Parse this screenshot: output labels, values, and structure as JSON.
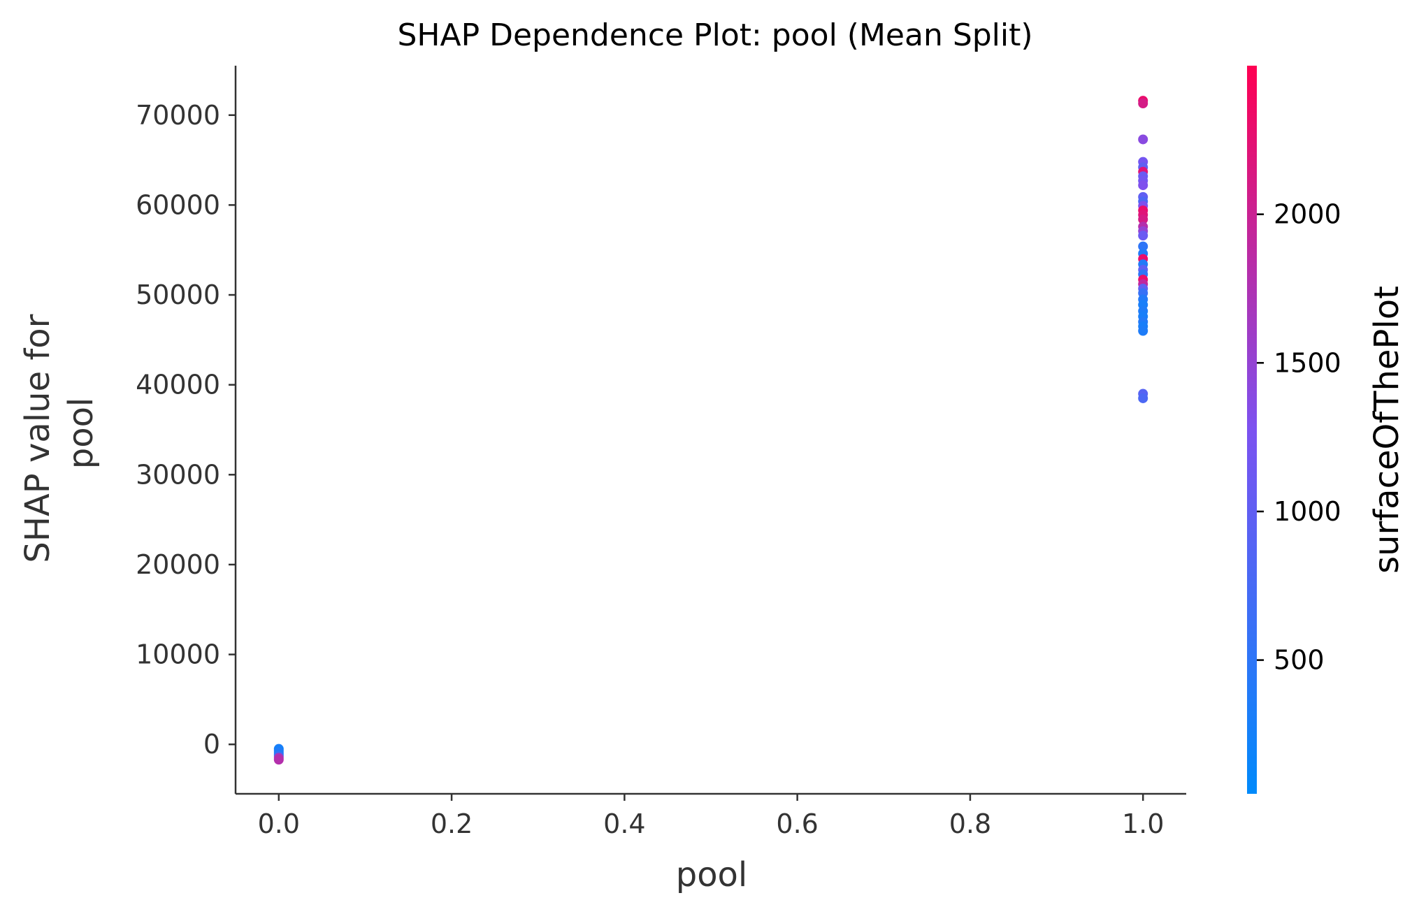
{
  "chart_data": {
    "type": "scatter",
    "title": "SHAP Dependence Plot: pool (Mean Split)",
    "xlabel": "pool",
    "ylabel_lines": [
      "SHAP value for",
      "pool"
    ],
    "xlim": [
      -0.05,
      1.05
    ],
    "ylim": [
      -5500,
      75500
    ],
    "x_ticks": [
      0.0,
      0.2,
      0.4,
      0.6,
      0.8,
      1.0
    ],
    "x_tick_labels": [
      "0.0",
      "0.2",
      "0.4",
      "0.6",
      "0.8",
      "1.0"
    ],
    "y_ticks": [
      0,
      10000,
      20000,
      30000,
      40000,
      50000,
      60000,
      70000
    ],
    "y_tick_labels": [
      "0",
      "10000",
      "20000",
      "30000",
      "40000",
      "50000",
      "60000",
      "70000"
    ],
    "grid": false,
    "colorbar": {
      "label": "surfaceOfThePlot",
      "range": [
        50,
        2500
      ],
      "ticks": [
        500,
        1000,
        1500,
        2000
      ],
      "tick_labels": [
        "500",
        "1000",
        "1500",
        "2000"
      ],
      "color_low": "#008afb",
      "color_mid": "#7c52f0",
      "color_high": "#ff0052"
    },
    "points": [
      {
        "x": 0,
        "y": -500,
        "c": 300
      },
      {
        "x": 0,
        "y": -700,
        "c": 250
      },
      {
        "x": 0,
        "y": -900,
        "c": 400
      },
      {
        "x": 0,
        "y": -1100,
        "c": 350
      },
      {
        "x": 0,
        "y": -1300,
        "c": 600
      },
      {
        "x": 0,
        "y": -1500,
        "c": 1700
      },
      {
        "x": 0,
        "y": -1700,
        "c": 1800
      },
      {
        "x": 1,
        "y": 71600,
        "c": 2300
      },
      {
        "x": 1,
        "y": 71300,
        "c": 2100
      },
      {
        "x": 1,
        "y": 67300,
        "c": 1400
      },
      {
        "x": 1,
        "y": 64800,
        "c": 1200
      },
      {
        "x": 1,
        "y": 64200,
        "c": 1000
      },
      {
        "x": 1,
        "y": 63700,
        "c": 2200
      },
      {
        "x": 1,
        "y": 63200,
        "c": 1100
      },
      {
        "x": 1,
        "y": 62700,
        "c": 1200
      },
      {
        "x": 1,
        "y": 62200,
        "c": 1300
      },
      {
        "x": 1,
        "y": 60900,
        "c": 1000
      },
      {
        "x": 1,
        "y": 60400,
        "c": 800
      },
      {
        "x": 1,
        "y": 59900,
        "c": 1300
      },
      {
        "x": 1,
        "y": 59400,
        "c": 2300
      },
      {
        "x": 1,
        "y": 58900,
        "c": 2200
      },
      {
        "x": 1,
        "y": 58400,
        "c": 2100
      },
      {
        "x": 1,
        "y": 57600,
        "c": 1800
      },
      {
        "x": 1,
        "y": 57100,
        "c": 1500
      },
      {
        "x": 1,
        "y": 56600,
        "c": 1100
      },
      {
        "x": 1,
        "y": 55400,
        "c": 500
      },
      {
        "x": 1,
        "y": 54600,
        "c": 400
      },
      {
        "x": 1,
        "y": 54000,
        "c": 2300
      },
      {
        "x": 1,
        "y": 53400,
        "c": 400
      },
      {
        "x": 1,
        "y": 52800,
        "c": 1000
      },
      {
        "x": 1,
        "y": 52300,
        "c": 500
      },
      {
        "x": 1,
        "y": 51700,
        "c": 2300
      },
      {
        "x": 1,
        "y": 51200,
        "c": 1900
      },
      {
        "x": 1,
        "y": 50700,
        "c": 1000
      },
      {
        "x": 1,
        "y": 50200,
        "c": 600
      },
      {
        "x": 1,
        "y": 49500,
        "c": 400
      },
      {
        "x": 1,
        "y": 48900,
        "c": 300
      },
      {
        "x": 1,
        "y": 48200,
        "c": 350
      },
      {
        "x": 1,
        "y": 47600,
        "c": 300
      },
      {
        "x": 1,
        "y": 47000,
        "c": 400
      },
      {
        "x": 1,
        "y": 46500,
        "c": 300
      },
      {
        "x": 1,
        "y": 46000,
        "c": 350
      },
      {
        "x": 1,
        "y": 39000,
        "c": 900
      },
      {
        "x": 1,
        "y": 38500,
        "c": 800
      }
    ]
  }
}
